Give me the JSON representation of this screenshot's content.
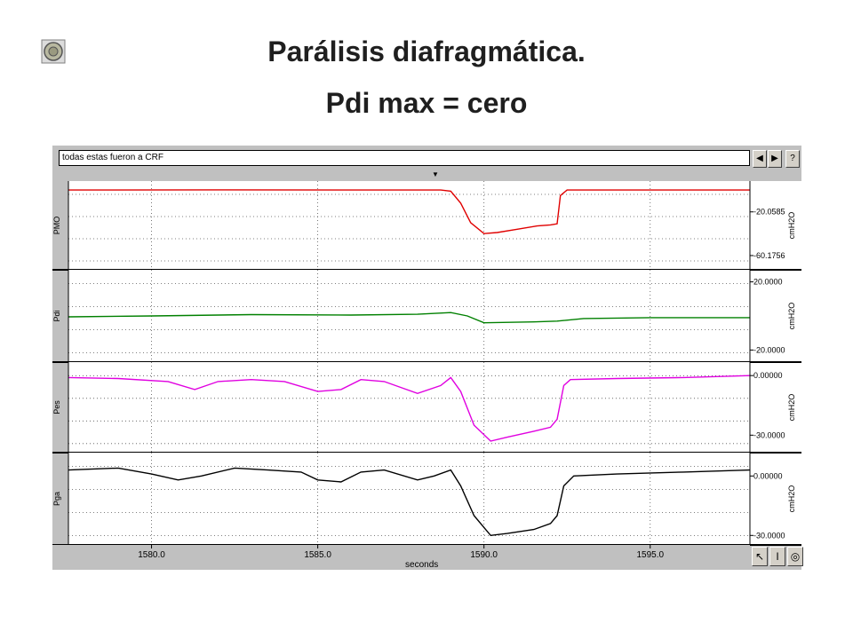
{
  "slide": {
    "title_line1": "Parálisis diafragmática.",
    "title_line2": "Pdi max = cero"
  },
  "toolbar": {
    "annotation": "todas estas fueron a CRF",
    "prev_label": "◀",
    "next_label": "▶",
    "help_label": "?"
  },
  "tools": {
    "pointer_icon": "pointer-icon",
    "ibeam_icon": "ibeam-icon",
    "zoom_icon": "zoom-icon"
  },
  "chart_data": {
    "type": "line",
    "xlabel": "seconds",
    "xlim": [
      1577.5,
      1598.0
    ],
    "xticks": [
      {
        "value": 1580.0,
        "label": "1580.0"
      },
      {
        "value": 1585.0,
        "label": "1585.0"
      },
      {
        "value": 1590.0,
        "label": "1590.0"
      },
      {
        "value": 1595.0,
        "label": "1595.0"
      }
    ],
    "channels": [
      {
        "name": "PMO",
        "unit": "cmH2O",
        "color": "#e00000",
        "ylim": [
          -70,
          5
        ],
        "ytick_labels": [
          {
            "value": -20.0585,
            "label": "-20.0585"
          },
          {
            "value": -60.1756,
            "label": "-60.1756"
          }
        ],
        "points": [
          [
            1577.5,
            0
          ],
          [
            1582,
            0.2
          ],
          [
            1587,
            0
          ],
          [
            1588.7,
            0
          ],
          [
            1589.0,
            -1
          ],
          [
            1589.3,
            -12
          ],
          [
            1589.6,
            -30
          ],
          [
            1590.0,
            -40
          ],
          [
            1590.4,
            -39
          ],
          [
            1591.0,
            -36
          ],
          [
            1591.6,
            -33
          ],
          [
            1592.0,
            -32
          ],
          [
            1592.2,
            -31
          ],
          [
            1592.3,
            -5
          ],
          [
            1592.5,
            0
          ],
          [
            1598.0,
            0
          ]
        ]
      },
      {
        "name": "Pdi",
        "unit": "cmH2O",
        "color": "#008000",
        "ylim": [
          -25,
          25
        ],
        "ytick_labels": [
          {
            "value": 20.0,
            "label": "20.0000"
          },
          {
            "value": -20.0,
            "label": "-20.0000"
          }
        ],
        "points": [
          [
            1577.5,
            -0.5
          ],
          [
            1580,
            0
          ],
          [
            1583,
            0.8
          ],
          [
            1586,
            0.5
          ],
          [
            1588,
            1
          ],
          [
            1589.0,
            2
          ],
          [
            1589.5,
            0
          ],
          [
            1590.0,
            -4
          ],
          [
            1591.5,
            -3.5
          ],
          [
            1592.2,
            -3
          ],
          [
            1593,
            -1.5
          ],
          [
            1595,
            -1
          ],
          [
            1598,
            -1
          ]
        ]
      },
      {
        "name": "Pes",
        "unit": "cmH2O",
        "color": "#e000e0",
        "ylim": [
          -37,
          5
        ],
        "ytick_labels": [
          {
            "value": 0.0,
            "label": "0.00000"
          },
          {
            "value": -30.0,
            "label": "-30.0000"
          }
        ],
        "points": [
          [
            1577.5,
            -1
          ],
          [
            1579,
            -1.5
          ],
          [
            1580.5,
            -3
          ],
          [
            1581.3,
            -7
          ],
          [
            1582.0,
            -3
          ],
          [
            1583,
            -2
          ],
          [
            1584,
            -3
          ],
          [
            1585.0,
            -8
          ],
          [
            1585.7,
            -7
          ],
          [
            1586.3,
            -2
          ],
          [
            1587,
            -3
          ],
          [
            1588.0,
            -9
          ],
          [
            1588.7,
            -5
          ],
          [
            1589.0,
            -1
          ],
          [
            1589.3,
            -8
          ],
          [
            1589.7,
            -25
          ],
          [
            1590.2,
            -33
          ],
          [
            1590.7,
            -31
          ],
          [
            1591.5,
            -28
          ],
          [
            1592.0,
            -26
          ],
          [
            1592.2,
            -22
          ],
          [
            1592.4,
            -5
          ],
          [
            1592.6,
            -2
          ],
          [
            1594,
            -1.5
          ],
          [
            1596,
            -1
          ],
          [
            1598,
            0
          ]
        ]
      },
      {
        "name": "Pga",
        "unit": "cmH2O",
        "color": "#000000",
        "ylim": [
          -33,
          10
        ],
        "ytick_labels": [
          {
            "value": 0.0,
            "label": "0.00000"
          },
          {
            "value": -30.0,
            "label": "-30.0000"
          }
        ],
        "points": [
          [
            1577.5,
            3
          ],
          [
            1579,
            4
          ],
          [
            1580.0,
            1
          ],
          [
            1580.8,
            -2
          ],
          [
            1581.5,
            0
          ],
          [
            1582.5,
            4
          ],
          [
            1583.5,
            3
          ],
          [
            1584.5,
            2
          ],
          [
            1585.0,
            -2
          ],
          [
            1585.7,
            -3
          ],
          [
            1586.3,
            2
          ],
          [
            1587,
            3
          ],
          [
            1588.0,
            -2
          ],
          [
            1588.5,
            0
          ],
          [
            1589.0,
            3
          ],
          [
            1589.3,
            -5
          ],
          [
            1589.7,
            -20
          ],
          [
            1590.2,
            -30
          ],
          [
            1590.7,
            -29
          ],
          [
            1591.5,
            -27
          ],
          [
            1592.0,
            -24
          ],
          [
            1592.2,
            -20
          ],
          [
            1592.4,
            -5
          ],
          [
            1592.7,
            0
          ],
          [
            1594,
            1
          ],
          [
            1596,
            2
          ],
          [
            1598,
            3
          ]
        ]
      }
    ]
  }
}
